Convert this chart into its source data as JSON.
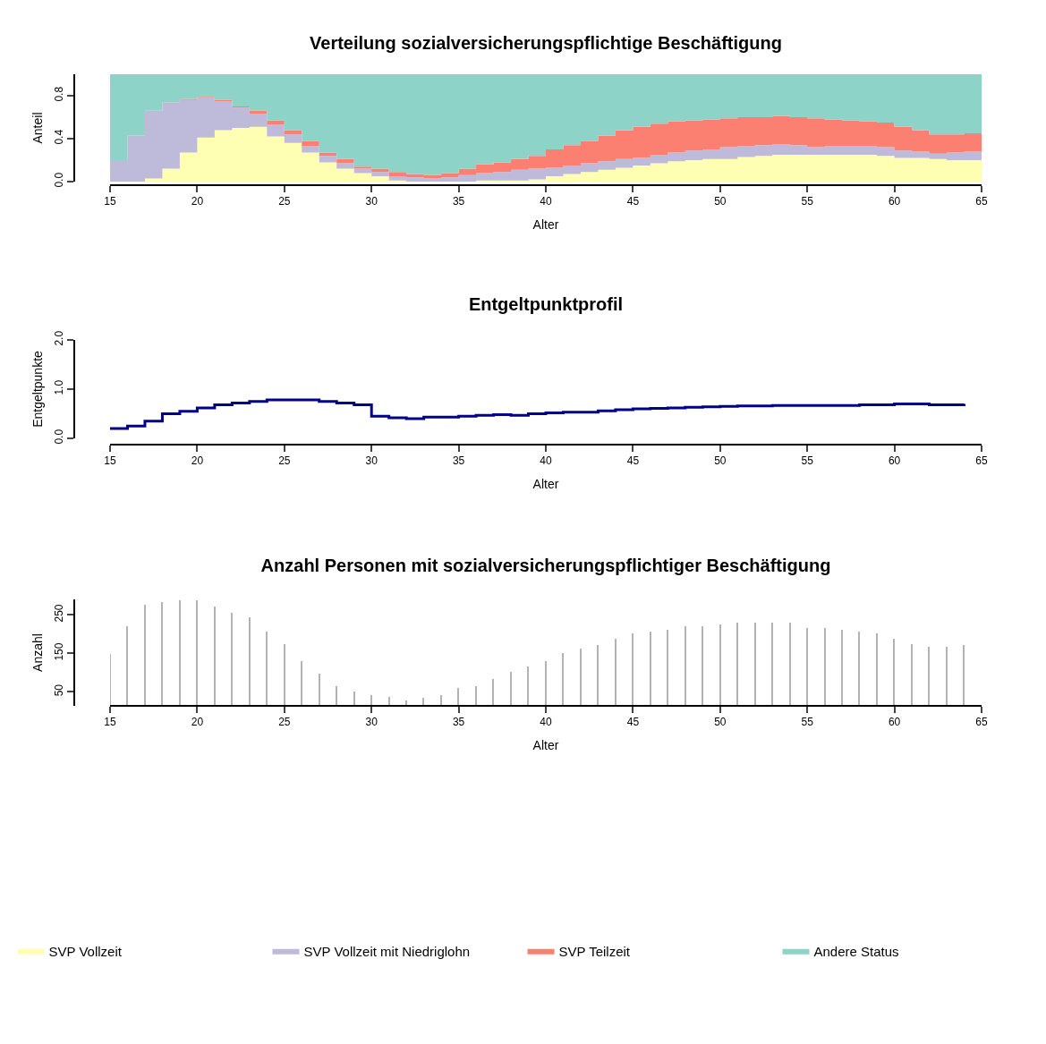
{
  "chart_data": [
    {
      "type": "area",
      "title": "Verteilung sozialversicherungspflichtige Beschäftigung",
      "xlabel": "Alter",
      "ylabel": "Anteil",
      "stacked": true,
      "legend": "bottom",
      "x": [
        15,
        16,
        17,
        18,
        19,
        20,
        21,
        22,
        23,
        24,
        25,
        26,
        27,
        28,
        29,
        30,
        31,
        32,
        33,
        34,
        35,
        36,
        37,
        38,
        39,
        40,
        41,
        42,
        43,
        44,
        45,
        46,
        47,
        48,
        49,
        50,
        51,
        52,
        53,
        54,
        55,
        56,
        57,
        58,
        59,
        60,
        61,
        62,
        63,
        64,
        65
      ],
      "xlim": [
        15,
        65
      ],
      "xticks": [
        15,
        20,
        25,
        30,
        35,
        40,
        45,
        50,
        55,
        60,
        65
      ],
      "ylim": [
        0,
        1
      ],
      "yticks": [
        {
          "value": 0,
          "label": "0.0"
        },
        {
          "value": 0.4,
          "label": "0.4"
        },
        {
          "value": 0.8,
          "label": "0.8"
        }
      ],
      "series": [
        {
          "name": "SVP Vollzeit",
          "color": "#ffffb3",
          "values": [
            0,
            0,
            0.03,
            0.12,
            0.27,
            0.41,
            0.48,
            0.5,
            0.51,
            0.42,
            0.36,
            0.27,
            0.18,
            0.12,
            0.08,
            0.05,
            0.01,
            0,
            0,
            0,
            0,
            0.01,
            0.01,
            0.01,
            0.02,
            0.05,
            0.07,
            0.09,
            0.11,
            0.13,
            0.15,
            0.17,
            0.19,
            0.2,
            0.21,
            0.21,
            0.23,
            0.24,
            0.25,
            0.25,
            0.25,
            0.25,
            0.25,
            0.25,
            0.24,
            0.22,
            0.22,
            0.21,
            0.2,
            0.2,
            0.2
          ]
        },
        {
          "name": "SVP Vollzeit mit Niedriglohn",
          "color": "#bebada",
          "values": [
            0.2,
            0.43,
            0.63,
            0.62,
            0.49,
            0.37,
            0.27,
            0.19,
            0.12,
            0.11,
            0.08,
            0.06,
            0.06,
            0.05,
            0.04,
            0.04,
            0.04,
            0.04,
            0.03,
            0.04,
            0.06,
            0.07,
            0.08,
            0.1,
            0.1,
            0.08,
            0.08,
            0.08,
            0.08,
            0.08,
            0.07,
            0.08,
            0.08,
            0.09,
            0.09,
            0.11,
            0.1,
            0.1,
            0.1,
            0.09,
            0.07,
            0.08,
            0.08,
            0.08,
            0.08,
            0.07,
            0.06,
            0.05,
            0.07,
            0.08,
            0.1
          ]
        },
        {
          "name": "SVP Teilzeit",
          "color": "#fb8072",
          "values": [
            0,
            0,
            0,
            0,
            0.01,
            0.01,
            0.01,
            0.01,
            0.03,
            0.04,
            0.04,
            0.05,
            0.03,
            0.04,
            0.02,
            0.03,
            0.04,
            0.03,
            0.03,
            0.04,
            0.06,
            0.08,
            0.09,
            0.1,
            0.12,
            0.17,
            0.19,
            0.21,
            0.24,
            0.27,
            0.29,
            0.29,
            0.29,
            0.28,
            0.28,
            0.27,
            0.27,
            0.26,
            0.26,
            0.26,
            0.27,
            0.25,
            0.24,
            0.23,
            0.23,
            0.22,
            0.2,
            0.18,
            0.17,
            0.17,
            0.16
          ]
        },
        {
          "name": "Andere Status",
          "color": "#8dd3c7",
          "values": [
            0.8,
            0.57,
            0.34,
            0.26,
            0.23,
            0.21,
            0.24,
            0.3,
            0.34,
            0.43,
            0.52,
            0.62,
            0.73,
            0.79,
            0.86,
            0.88,
            0.91,
            0.93,
            0.94,
            0.92,
            0.88,
            0.84,
            0.82,
            0.79,
            0.76,
            0.7,
            0.66,
            0.62,
            0.57,
            0.52,
            0.49,
            0.46,
            0.44,
            0.43,
            0.42,
            0.41,
            0.4,
            0.4,
            0.39,
            0.4,
            0.41,
            0.42,
            0.43,
            0.44,
            0.45,
            0.49,
            0.52,
            0.56,
            0.56,
            0.55,
            0.54
          ]
        }
      ]
    },
    {
      "type": "step",
      "title": "Entgeltpunktprofil",
      "xlabel": "Alter",
      "ylabel": "Entgeltpunkte",
      "x": [
        15,
        16,
        17,
        18,
        19,
        20,
        21,
        22,
        23,
        24,
        25,
        26,
        27,
        28,
        29,
        30,
        31,
        32,
        33,
        34,
        35,
        36,
        37,
        38,
        39,
        40,
        41,
        42,
        43,
        44,
        45,
        46,
        47,
        48,
        49,
        50,
        51,
        52,
        53,
        54,
        55,
        56,
        57,
        58,
        59,
        60,
        61,
        62,
        63,
        64
      ],
      "xlim": [
        15,
        65
      ],
      "xticks": [
        15,
        20,
        25,
        30,
        35,
        40,
        45,
        50,
        55,
        60,
        65
      ],
      "ylim": [
        0,
        2
      ],
      "yticks": [
        {
          "value": 0,
          "label": "0.0"
        },
        {
          "value": 1,
          "label": "1.0"
        },
        {
          "value": 2,
          "label": "2.0"
        }
      ],
      "series": [
        {
          "color": "#00008b",
          "values": [
            0.2,
            0.25,
            0.35,
            0.5,
            0.55,
            0.62,
            0.68,
            0.72,
            0.75,
            0.78,
            0.78,
            0.78,
            0.75,
            0.72,
            0.68,
            0.45,
            0.42,
            0.4,
            0.43,
            0.43,
            0.45,
            0.47,
            0.48,
            0.47,
            0.5,
            0.52,
            0.53,
            0.53,
            0.56,
            0.58,
            0.6,
            0.61,
            0.62,
            0.63,
            0.64,
            0.65,
            0.66,
            0.66,
            0.67,
            0.67,
            0.67,
            0.67,
            0.67,
            0.68,
            0.68,
            0.7,
            0.7,
            0.68,
            0.68,
            0.7
          ]
        }
      ]
    },
    {
      "type": "bar",
      "title": "Anzahl Personen mit sozialversicherungspflichtiger Beschäftigung",
      "xlabel": "Alter",
      "ylabel": "Anzahl",
      "x": [
        15,
        16,
        17,
        18,
        19,
        20,
        21,
        22,
        23,
        24,
        25,
        26,
        27,
        28,
        29,
        30,
        31,
        32,
        33,
        34,
        35,
        36,
        37,
        38,
        39,
        40,
        41,
        42,
        43,
        44,
        45,
        46,
        47,
        48,
        49,
        50,
        51,
        52,
        53,
        54,
        55,
        56,
        57,
        58,
        59,
        60,
        61,
        62,
        63,
        64
      ],
      "xlim": [
        15,
        65
      ],
      "xticks": [
        15,
        20,
        25,
        30,
        35,
        40,
        45,
        50,
        55,
        60,
        65
      ],
      "ylim": [
        14,
        290
      ],
      "yticks": [
        50,
        150,
        250
      ],
      "series": [
        {
          "color": "#b3b3b3",
          "values": [
            148,
            220,
            275,
            283,
            288,
            288,
            271,
            256,
            243,
            206,
            175,
            129,
            98,
            66,
            52,
            43,
            38,
            29,
            34,
            43,
            61,
            66,
            84,
            102,
            115,
            130,
            152,
            162,
            171,
            189,
            202,
            207,
            212,
            221,
            221,
            225,
            229,
            229,
            229,
            229,
            216,
            216,
            212,
            207,
            202,
            189,
            175,
            167,
            167,
            171
          ]
        }
      ]
    }
  ]
}
